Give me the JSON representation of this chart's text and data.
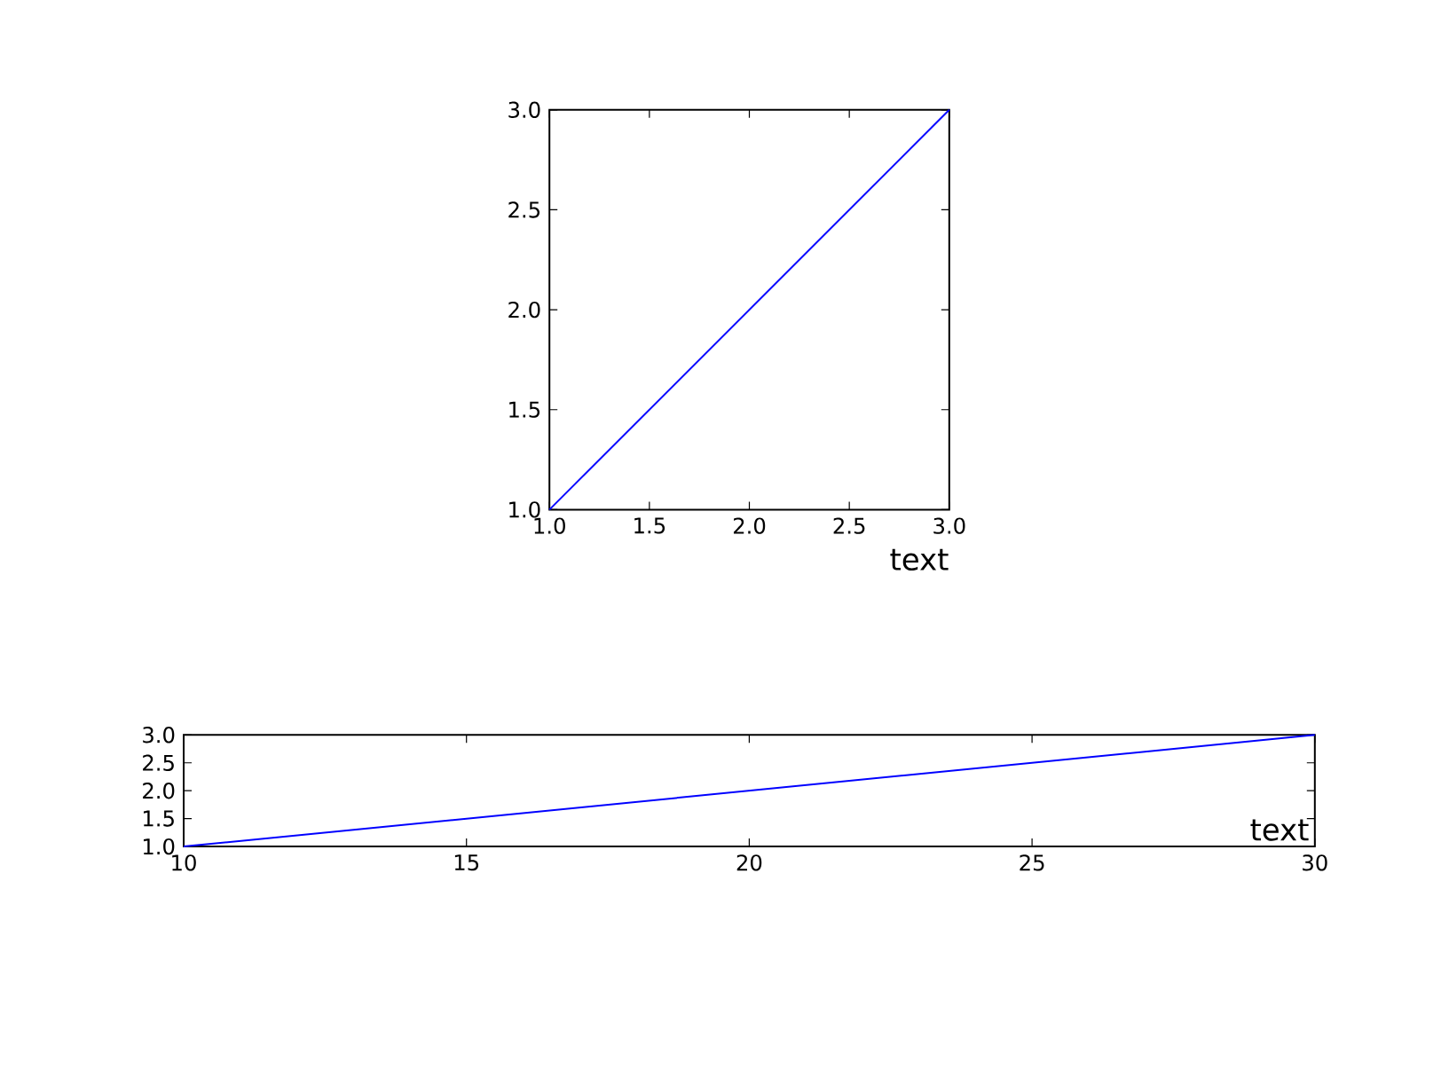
{
  "chart_data": [
    {
      "type": "line",
      "x": [
        1,
        3
      ],
      "values": [
        1,
        3
      ],
      "color": "#0000ff",
      "xlim": [
        1,
        3
      ],
      "ylim": [
        1,
        3
      ],
      "xticks": [
        {
          "value": 1,
          "label": "1.0"
        },
        {
          "value": 1.5,
          "label": "1.5"
        },
        {
          "value": 2,
          "label": "2.0"
        },
        {
          "value": 2.5,
          "label": "2.5"
        },
        {
          "value": 3,
          "label": "3.0"
        }
      ],
      "yticks": [
        {
          "value": 1,
          "label": "1.0"
        },
        {
          "value": 1.5,
          "label": "1.5"
        },
        {
          "value": 2,
          "label": "2.0"
        },
        {
          "value": 2.5,
          "label": "2.5"
        },
        {
          "value": 3,
          "label": "3.0"
        }
      ],
      "annotations": [
        "text"
      ]
    },
    {
      "type": "line",
      "x": [
        10,
        30
      ],
      "values": [
        1,
        3
      ],
      "color": "#0000ff",
      "xlim": [
        10,
        30
      ],
      "ylim": [
        1,
        3
      ],
      "xticks": [
        10,
        15,
        20,
        25,
        30
      ],
      "yticks": [
        {
          "value": 1,
          "label": "1.0"
        },
        {
          "value": 1.5,
          "label": "1.5"
        },
        {
          "value": 2,
          "label": "2.0"
        },
        {
          "value": 2.5,
          "label": "2.5"
        },
        {
          "value": 3,
          "label": "3.0"
        }
      ],
      "annotations": [
        "text"
      ]
    }
  ]
}
